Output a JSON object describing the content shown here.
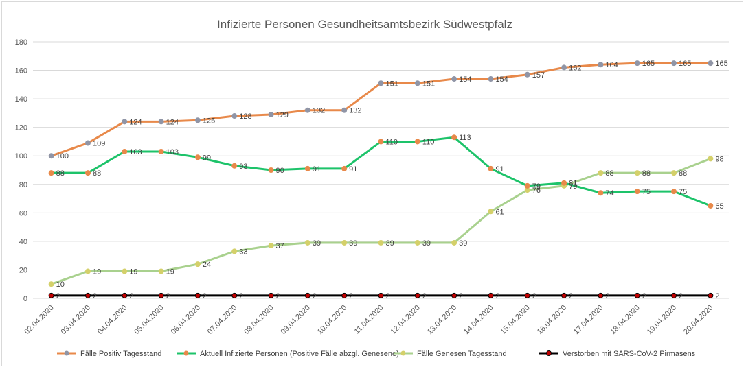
{
  "chart_data": {
    "type": "line",
    "title": "Infizierte Personen Gesundheitsamtsbezirk Südwestpfalz",
    "xlabel": "",
    "ylabel": "",
    "ylim": [
      0,
      180
    ],
    "yticks": [
      0,
      20,
      40,
      60,
      80,
      100,
      120,
      140,
      160,
      180
    ],
    "grid": true,
    "legend_position": "bottom",
    "categories": [
      "02.04.2020",
      "03.04.2020",
      "04.04.2020",
      "05.04.2020",
      "06.04.2020",
      "07.04.2020",
      "08.04.2020",
      "09.04.2020",
      "10.04.2020",
      "11.04.2020",
      "12.04.2020",
      "13.04.2020",
      "14.04.2020",
      "15.04.2020",
      "16.04.2020",
      "17.04.2020",
      "18.04.2020",
      "19.04.2020",
      "20.04.2020"
    ],
    "series": [
      {
        "name": "Fälle Positiv Tagesstand",
        "line_color": "#E8894A",
        "marker_color": "#9095A6",
        "values": [
          100,
          109,
          124,
          124,
          125,
          128,
          129,
          132,
          132,
          151,
          151,
          154,
          154,
          157,
          162,
          164,
          165,
          165,
          165
        ]
      },
      {
        "name": "Aktuell Infizierte Personen (Positive Fälle abzgl. Genesene)",
        "line_color": "#1DC36A",
        "marker_color": "#E8894A",
        "values": [
          88,
          88,
          103,
          103,
          99,
          93,
          90,
          91,
          91,
          110,
          110,
          113,
          91,
          79,
          81,
          74,
          75,
          75,
          65
        ]
      },
      {
        "name": "Fälle Genesen Tagesstand",
        "line_color": "#A9D18E",
        "marker_color": "#D4D06A",
        "values": [
          10,
          19,
          19,
          19,
          24,
          33,
          37,
          39,
          39,
          39,
          39,
          39,
          61,
          76,
          79,
          88,
          88,
          88,
          98
        ]
      },
      {
        "name": "Verstorben mit SARS-CoV-2 Pirmasens",
        "line_color": "#000000",
        "marker_color": "#C00000",
        "values": [
          2,
          2,
          2,
          2,
          2,
          2,
          2,
          2,
          2,
          2,
          2,
          2,
          2,
          2,
          2,
          2,
          2,
          2,
          2
        ]
      }
    ]
  }
}
